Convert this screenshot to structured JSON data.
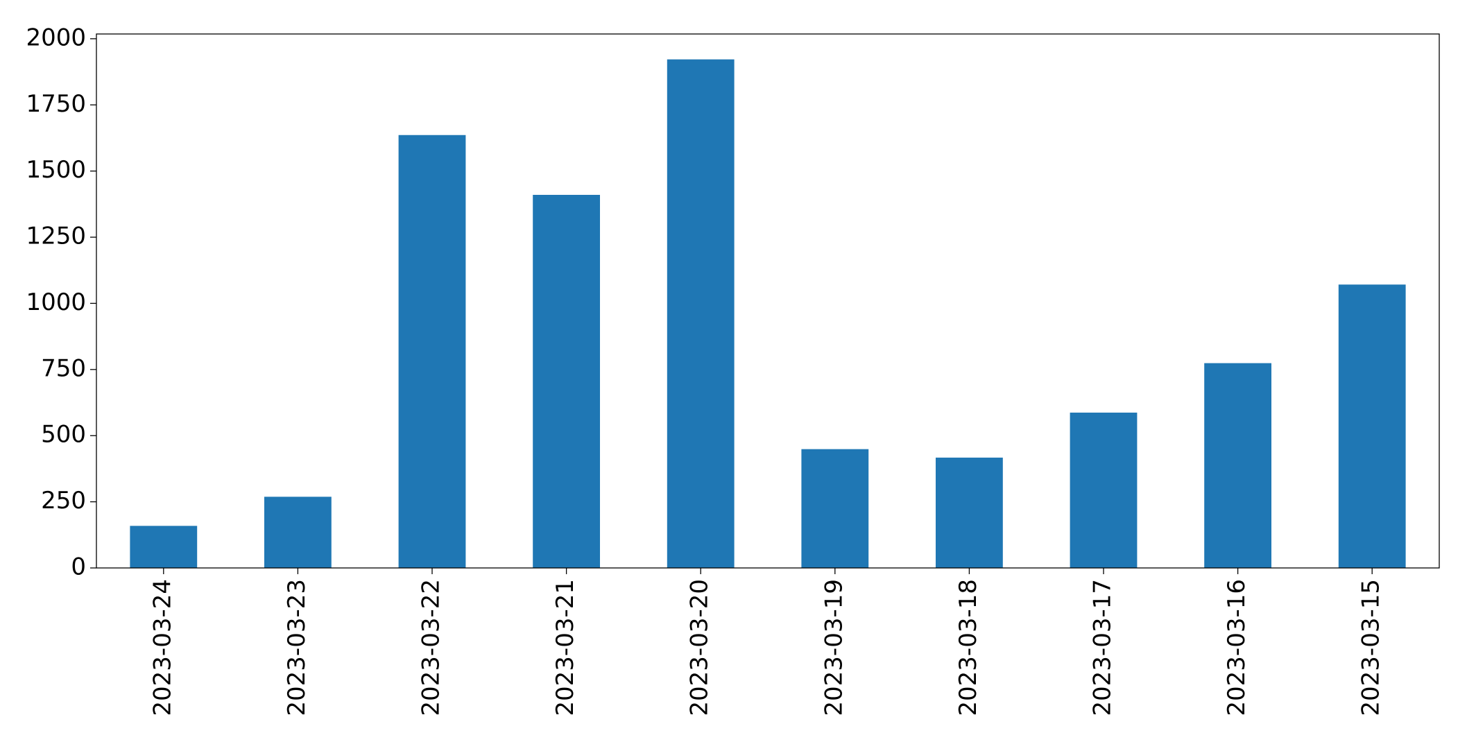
{
  "chart_data": {
    "type": "bar",
    "categories": [
      "2023-03-24",
      "2023-03-23",
      "2023-03-22",
      "2023-03-21",
      "2023-03-20",
      "2023-03-19",
      "2023-03-18",
      "2023-03-17",
      "2023-03-16",
      "2023-03-15"
    ],
    "values": [
      159,
      269,
      1636,
      1410,
      1922,
      449,
      417,
      587,
      774,
      1071
    ],
    "color": "#1f77b4",
    "ylim": [
      0,
      2018
    ],
    "yticks": [
      0,
      250,
      500,
      750,
      1000,
      1250,
      1500,
      1750,
      2000
    ],
    "grid": false
  }
}
